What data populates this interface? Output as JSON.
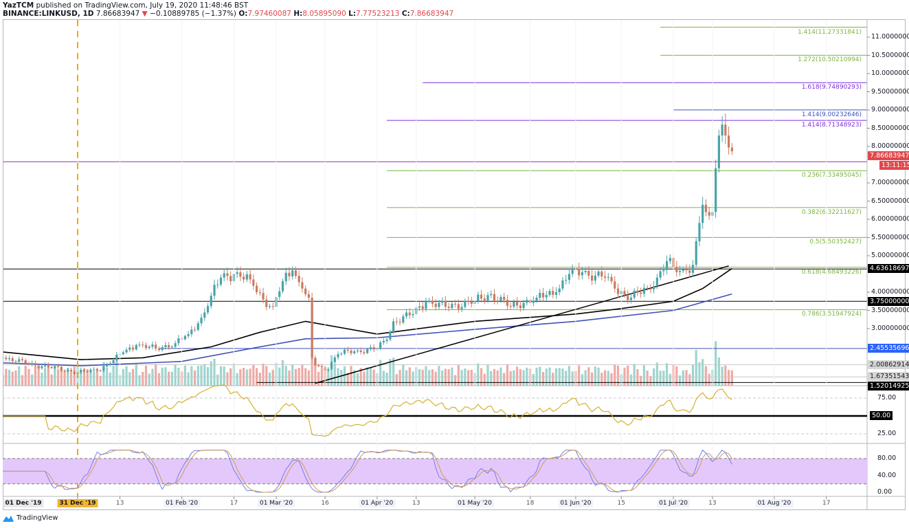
{
  "header": {
    "author": "YazTCM",
    "published": "published on TradingView.com, July 19, 2020 11:48:46 BST",
    "symbol": "BINANCE:LINKUSD, 1D",
    "last": "7.86683947",
    "direction_icon": "triangle-down",
    "change": "−0.10889785 (−1.37%)",
    "open_label": "O:",
    "open": "7.97460087",
    "high_label": "H:",
    "high": "8.05895090",
    "low_label": "L:",
    "low": "7.77523213",
    "close_label": "C:",
    "close": "7.86683947"
  },
  "footer": {
    "brand": "TradingView"
  },
  "colors": {
    "up": "#4aa3a8",
    "down": "#c97b62",
    "vol_up": "#9dd5cf",
    "vol_down": "#f0a9a3",
    "ma_fast": "#000000",
    "ma_slow": "#3f51b5",
    "rsi": "#d4b12e",
    "stoch_k": "#6f7ff0",
    "stoch_d": "#d19a55",
    "stoch_band": "#e4c8fb",
    "fib_green": "#7cb342",
    "fib_purple": "#7e2ee0",
    "price_badge": "#e0474c"
  },
  "chart_data": {
    "type": "candlestick",
    "title": "",
    "x_range": [
      "2019-12-08",
      "2020-08-24"
    ],
    "y_range": [
      1.43,
      11.4
    ],
    "close_keypoints": [
      [
        "2019-12-08",
        2.2
      ],
      [
        "2019-12-15",
        2.05
      ],
      [
        "2019-12-22",
        1.95
      ],
      [
        "2019-12-31",
        1.8
      ],
      [
        "2020-01-06",
        1.85
      ],
      [
        "2020-01-10",
        2.05
      ],
      [
        "2020-01-14",
        2.35
      ],
      [
        "2020-01-18",
        2.55
      ],
      [
        "2020-01-24",
        2.45
      ],
      [
        "2020-01-30",
        2.6
      ],
      [
        "2020-02-03",
        2.85
      ],
      [
        "2020-02-07",
        3.3
      ],
      [
        "2020-02-10",
        3.9
      ],
      [
        "2020-02-13",
        4.4
      ],
      [
        "2020-02-17",
        4.5
      ],
      [
        "2020-02-22",
        4.35
      ],
      [
        "2020-02-26",
        3.8
      ],
      [
        "2020-02-29",
        3.6
      ],
      [
        "2020-03-03",
        4.3
      ],
      [
        "2020-03-06",
        4.6
      ],
      [
        "2020-03-09",
        4.1
      ],
      [
        "2020-03-11",
        3.85
      ],
      [
        "2020-03-12",
        2.2
      ],
      [
        "2020-03-13",
        2.0
      ],
      [
        "2020-03-16",
        1.85
      ],
      [
        "2020-03-20",
        2.3
      ],
      [
        "2020-03-26",
        2.4
      ],
      [
        "2020-04-01",
        2.45
      ],
      [
        "2020-04-04",
        2.7
      ],
      [
        "2020-04-06",
        3.2
      ],
      [
        "2020-04-12",
        3.4
      ],
      [
        "2020-04-16",
        3.75
      ],
      [
        "2020-04-22",
        3.6
      ],
      [
        "2020-05-01",
        3.75
      ],
      [
        "2020-05-06",
        3.95
      ],
      [
        "2020-05-12",
        3.6
      ],
      [
        "2020-05-20",
        3.85
      ],
      [
        "2020-05-26",
        4.0
      ],
      [
        "2020-05-30",
        4.5
      ],
      [
        "2020-06-03",
        4.55
      ],
      [
        "2020-06-10",
        4.4
      ],
      [
        "2020-06-13",
        4.1
      ],
      [
        "2020-06-18",
        3.85
      ],
      [
        "2020-06-23",
        4.1
      ],
      [
        "2020-06-26",
        4.4
      ],
      [
        "2020-06-29",
        4.85
      ],
      [
        "2020-07-02",
        4.55
      ],
      [
        "2020-07-05",
        4.6
      ],
      [
        "2020-07-07",
        4.75
      ],
      [
        "2020-07-08",
        5.4
      ],
      [
        "2020-07-09",
        5.9
      ],
      [
        "2020-07-10",
        6.4
      ],
      [
        "2020-07-11",
        6.2
      ],
      [
        "2020-07-12",
        6.1
      ],
      [
        "2020-07-13",
        6.2
      ],
      [
        "2020-07-14",
        7.4
      ],
      [
        "2020-07-15",
        8.3
      ],
      [
        "2020-07-16",
        8.6
      ],
      [
        "2020-07-17",
        8.3
      ],
      [
        "2020-07-18",
        7.97
      ],
      [
        "2020-07-19",
        7.86683947
      ]
    ],
    "moving_averages": [
      {
        "color_key": "ma_fast",
        "points": [
          [
            "2019-12-08",
            2.36
          ],
          [
            "2020-01-01",
            2.15
          ],
          [
            "2020-01-20",
            2.2
          ],
          [
            "2020-02-10",
            2.5
          ],
          [
            "2020-02-25",
            2.9
          ],
          [
            "2020-03-10",
            3.2
          ],
          [
            "2020-04-01",
            2.85
          ],
          [
            "2020-05-01",
            3.2
          ],
          [
            "2020-06-01",
            3.4
          ],
          [
            "2020-06-15",
            3.55
          ],
          [
            "2020-07-01",
            3.75
          ],
          [
            "2020-07-10",
            4.1
          ],
          [
            "2020-07-19",
            4.65
          ]
        ]
      },
      {
        "color_key": "ma_slow",
        "points": [
          [
            "2019-12-08",
            2.06
          ],
          [
            "2020-01-01",
            1.98
          ],
          [
            "2020-02-01",
            2.1
          ],
          [
            "2020-02-25",
            2.5
          ],
          [
            "2020-03-10",
            2.72
          ],
          [
            "2020-04-01",
            2.75
          ],
          [
            "2020-05-01",
            2.98
          ],
          [
            "2020-06-01",
            3.2
          ],
          [
            "2020-07-01",
            3.5
          ],
          [
            "2020-07-19",
            3.95
          ]
        ]
      }
    ],
    "trendline": [
      [
        "2020-03-13",
        1.5
      ],
      [
        "2020-07-18",
        4.72
      ]
    ],
    "event_line_date": "2019-12-31",
    "fib_levels": [
      {
        "label": "1.414(11.27331841)",
        "price": 11.27331841,
        "from": "2020-06-27",
        "color_key": "fib_green"
      },
      {
        "label": "1.272(10.50210994)",
        "price": 10.50210994,
        "from": "2020-06-27",
        "color_key": "fib_green"
      },
      {
        "label": "1.618(9.74890293)",
        "price": 9.74890293,
        "from": "2020-04-15",
        "color_key": "fib_purple"
      },
      {
        "label": "1.414(9.00232646)",
        "price": 9.00232646,
        "from": "2020-07-01",
        "color_key": "ma_slow"
      },
      {
        "label": "1.414(8.71348923)",
        "price": 8.71348923,
        "from": "2020-04-04",
        "color_key": "fib_purple"
      },
      {
        "label": "0.236(7.33495045)",
        "price": 7.33495045,
        "from": "2020-04-04",
        "color_key": "fib_green"
      },
      {
        "label": "0.382(6.32211627)",
        "price": 6.32211627,
        "from": "2020-04-04",
        "color_key": "fib_green"
      },
      {
        "label": "0.5(5.50352427)",
        "price": 5.50352427,
        "from": "2020-04-04",
        "color_key": "fib_green"
      },
      {
        "label": "0.618(4.68493226)",
        "price": 4.68493226,
        "from": "2020-04-04",
        "color_key": "fib_green"
      },
      {
        "label": "0.786(3.51947924)",
        "price": 3.51947924,
        "from": "2020-04-04",
        "color_key": "fib_green"
      }
    ],
    "horizontal_levels": [
      {
        "price": 7.58,
        "color": "#9c27b0",
        "from": null
      },
      {
        "price": 4.63618697,
        "color": "#000000",
        "from": null,
        "badge": "4.63618697",
        "badge_bg": "#000000",
        "badge_fg": "#ffffff"
      },
      {
        "price": 3.75,
        "color": "#000000",
        "from": null,
        "badge": "3.75000000",
        "badge_bg": "#000000",
        "badge_fg": "#ffffff"
      },
      {
        "price": 2.45535696,
        "color": "#3f51b5",
        "from": "2020-01-25",
        "badge": "2.45535696",
        "badge_bg": "#2962ff",
        "badge_fg": "#ffffff"
      },
      {
        "price": 2.00862914,
        "color": "#c8c8c8",
        "from": null,
        "badge": "2.00862914",
        "badge_bg": "#d6d6d6",
        "badge_fg": "#131722"
      },
      {
        "price": 1.67351543,
        "color": "#c8c8c8",
        "from": null,
        "badge": "1.67351543",
        "badge_bg": "#d6d6d6",
        "badge_fg": "#131722"
      },
      {
        "price": 1.52014925,
        "color": "#000000",
        "from": "2020-02-24",
        "badge": "1.52014925",
        "badge_bg": "#000000",
        "badge_fg": "#ffffff"
      }
    ],
    "price_ticks": [
      "11.00000000",
      "10.50000000",
      "10.00000000",
      "9.50000000",
      "9.00000000",
      "8.50000000",
      "8.00000000",
      "7.00000000",
      "6.50000000",
      "6.00000000",
      "5.50000000",
      "5.00000000",
      "4.00000000",
      "3.50000000",
      "3.00000000"
    ],
    "last_price_badge": "7.86683947",
    "countdown_badge": "13:11:15",
    "date_ticks": [
      {
        "label": "01 Dec '19",
        "date": null,
        "style": "pinned"
      },
      {
        "label": "31 Dec '19",
        "date": "2019-12-31",
        "style": "highlight"
      },
      {
        "label": "13",
        "date": "2020-01-13",
        "style": "minor"
      },
      {
        "label": "01 Feb '20",
        "date": "2020-02-01",
        "style": "major"
      },
      {
        "label": "17",
        "date": "2020-02-17",
        "style": "minor"
      },
      {
        "label": "01 Mar '20",
        "date": "2020-03-01",
        "style": "major"
      },
      {
        "label": "16",
        "date": "2020-03-16",
        "style": "minor"
      },
      {
        "label": "01 Apr '20",
        "date": "2020-04-01",
        "style": "major"
      },
      {
        "label": "13",
        "date": "2020-04-13",
        "style": "minor"
      },
      {
        "label": "01 May '20",
        "date": "2020-05-01",
        "style": "major"
      },
      {
        "label": "18",
        "date": "2020-05-18",
        "style": "minor"
      },
      {
        "label": "01 Jun '20",
        "date": "2020-06-01",
        "style": "major"
      },
      {
        "label": "15",
        "date": "2020-06-15",
        "style": "minor"
      },
      {
        "label": "01 Jul '20",
        "date": "2020-07-01",
        "style": "major"
      },
      {
        "label": "13",
        "date": "2020-07-13",
        "style": "minor"
      },
      {
        "label": "01 Aug '20",
        "date": "2020-08-01",
        "style": "major"
      },
      {
        "label": "17",
        "date": "2020-08-17",
        "style": "minor"
      }
    ],
    "rsi_pane": {
      "ticks": [
        "75.00",
        "50.00",
        "25.00"
      ],
      "tick_values": [
        75,
        50,
        25
      ],
      "midline_badge": "50.00",
      "period": 14
    },
    "stoch_rsi_pane": {
      "ticks": [
        "80.00",
        "40.00",
        "0.00"
      ],
      "tick_values": [
        80,
        40,
        0
      ],
      "band": [
        20,
        80
      ]
    }
  }
}
